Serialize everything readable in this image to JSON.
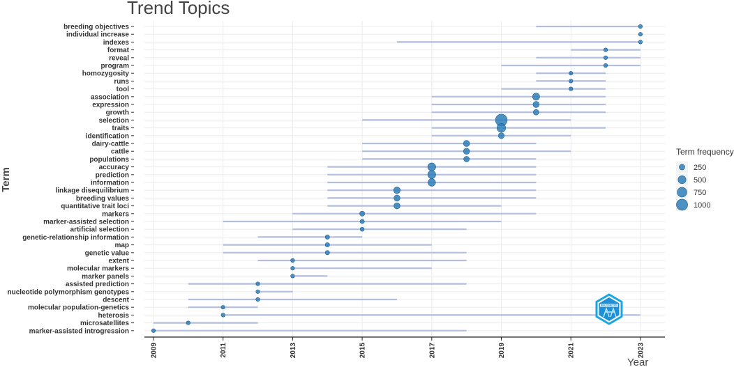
{
  "chart_data": {
    "type": "scatter",
    "title": "Trend Topics",
    "xlabel": "Year",
    "ylabel": "Term",
    "x_ticks": [
      "2009",
      "2011",
      "2013",
      "2015",
      "2017",
      "2019",
      "2021",
      "2023"
    ],
    "xlim": [
      2008.8,
      2023.7
    ],
    "grid": true,
    "legend_title": "Term frequency",
    "legend_position": "right",
    "legend_entries": [
      "250",
      "500",
      "750",
      "1000"
    ],
    "legend_values": [
      250,
      500,
      750,
      1000
    ],
    "point_color": "#2e7fb8",
    "range_color": "#b3bddd",
    "terms": [
      {
        "term": "breeding objectives",
        "start": 2020,
        "end": 2023,
        "year": 2023,
        "freq": 40
      },
      {
        "term": "individual increase",
        "start": 2023,
        "end": 2023,
        "year": 2023,
        "freq": 35
      },
      {
        "term": "indexes",
        "start": 2016,
        "end": 2023,
        "year": 2023,
        "freq": 40
      },
      {
        "term": "format",
        "start": 2021,
        "end": 2023,
        "year": 2022,
        "freq": 80
      },
      {
        "term": "reveal",
        "start": 2020,
        "end": 2023,
        "year": 2022,
        "freq": 80
      },
      {
        "term": "program",
        "start": 2019,
        "end": 2023,
        "year": 2022,
        "freq": 80
      },
      {
        "term": "homozygosity",
        "start": 2020,
        "end": 2022,
        "year": 2021,
        "freq": 120
      },
      {
        "term": "runs",
        "start": 2020,
        "end": 2022,
        "year": 2021,
        "freq": 110
      },
      {
        "term": "tool",
        "start": 2019,
        "end": 2022,
        "year": 2021,
        "freq": 100
      },
      {
        "term": "association",
        "start": 2017,
        "end": 2022,
        "year": 2020,
        "freq": 400
      },
      {
        "term": "expression",
        "start": 2017,
        "end": 2022,
        "year": 2020,
        "freq": 300
      },
      {
        "term": "growth",
        "start": 2017,
        "end": 2022,
        "year": 2020,
        "freq": 250
      },
      {
        "term": "selection",
        "start": 2015,
        "end": 2021,
        "year": 2019,
        "freq": 1100
      },
      {
        "term": "traits",
        "start": 2017,
        "end": 2022,
        "year": 2019,
        "freq": 600
      },
      {
        "term": "identification",
        "start": 2017,
        "end": 2021,
        "year": 2019,
        "freq": 280
      },
      {
        "term": "dairy-cattle",
        "start": 2015,
        "end": 2020,
        "year": 2018,
        "freq": 300
      },
      {
        "term": "cattle",
        "start": 2015,
        "end": 2021,
        "year": 2018,
        "freq": 300
      },
      {
        "term": "populations",
        "start": 2015,
        "end": 2020,
        "year": 2018,
        "freq": 250
      },
      {
        "term": "accuracy",
        "start": 2014,
        "end": 2020,
        "year": 2017,
        "freq": 500
      },
      {
        "term": "prediction",
        "start": 2014,
        "end": 2020,
        "year": 2017,
        "freq": 500
      },
      {
        "term": "information",
        "start": 2014,
        "end": 2020,
        "year": 2017,
        "freq": 450
      },
      {
        "term": "linkage disequilibrium",
        "start": 2014,
        "end": 2020,
        "year": 2016,
        "freq": 350
      },
      {
        "term": "breeding values",
        "start": 2014,
        "end": 2020,
        "year": 2016,
        "freq": 300
      },
      {
        "term": "quantitative trait loci",
        "start": 2014,
        "end": 2019,
        "year": 2016,
        "freq": 300
      },
      {
        "term": "markers",
        "start": 2013,
        "end": 2020,
        "year": 2015,
        "freq": 200
      },
      {
        "term": "marker-assisted selection",
        "start": 2011,
        "end": 2019,
        "year": 2015,
        "freq": 150
      },
      {
        "term": "artificial selection",
        "start": 2013,
        "end": 2018,
        "year": 2015,
        "freq": 130
      },
      {
        "term": "genetic-relationship information",
        "start": 2012,
        "end": 2015,
        "year": 2014,
        "freq": 150
      },
      {
        "term": "map",
        "start": 2011,
        "end": 2017,
        "year": 2014,
        "freq": 150
      },
      {
        "term": "genetic value",
        "start": 2011,
        "end": 2018,
        "year": 2014,
        "freq": 150
      },
      {
        "term": "extent",
        "start": 2012,
        "end": 2018,
        "year": 2013,
        "freq": 100
      },
      {
        "term": "molecular markers",
        "start": 2013,
        "end": 2017,
        "year": 2013,
        "freq": 100
      },
      {
        "term": "marker panels",
        "start": 2013,
        "end": 2014,
        "year": 2013,
        "freq": 100
      },
      {
        "term": "assisted prediction",
        "start": 2010,
        "end": 2018,
        "year": 2012,
        "freq": 100
      },
      {
        "term": "nucleotide polymorphism genotypes",
        "start": 2012,
        "end": 2013,
        "year": 2012,
        "freq": 100
      },
      {
        "term": "descent",
        "start": 2010,
        "end": 2016,
        "year": 2012,
        "freq": 120
      },
      {
        "term": "molecular population-genetics",
        "start": 2010,
        "end": 2012,
        "year": 2011,
        "freq": 80
      },
      {
        "term": "heterosis",
        "start": 2011,
        "end": 2023,
        "year": 2011,
        "freq": 70
      },
      {
        "term": "microsatellites",
        "start": 2009,
        "end": 2012,
        "year": 2010,
        "freq": 80
      },
      {
        "term": "marker-assisted introgression",
        "start": 2009,
        "end": 2018,
        "year": 2009,
        "freq": 60
      }
    ]
  },
  "logo": {
    "name": "bibliometrix-logo-icon",
    "text": "BIBLIOMETRIX",
    "color": "#1aa6e0"
  }
}
